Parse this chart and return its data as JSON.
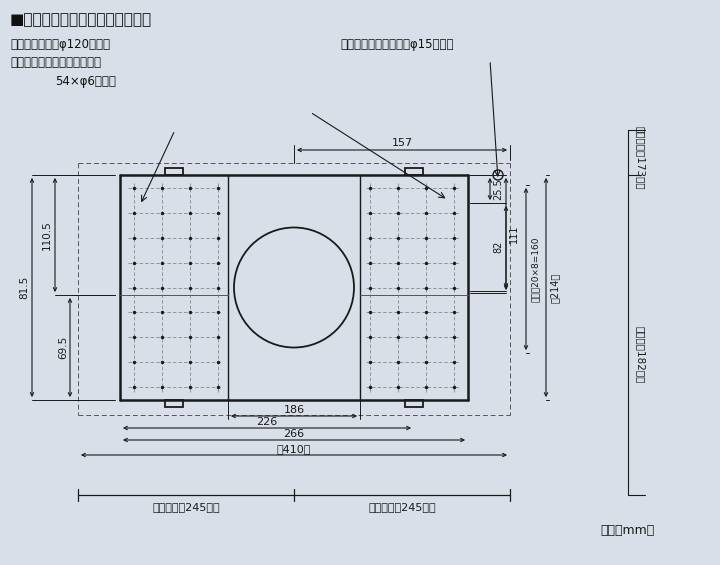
{
  "bg_color": "#d8dfe8",
  "title_text": "■取付位置図（室内側より見る）",
  "label_outdoor": "室外給排気口（φ120壁穴）",
  "label_lr": "（左：排気口、右：給気口）",
  "label_holes": "54×φ6取付穴",
  "label_power": "電源コード引出し口（φ15壁穴）",
  "label_left_wall": "左側壁より245以上",
  "label_right_wall": "右側壁より245以上",
  "label_unit": "（単位mm）",
  "label_ceil_top": "天井面より173以上",
  "label_ceil_bot": "下側より182以上",
  "dim_157": "157",
  "dim_1105": "110.5",
  "dim_695": "69.5",
  "dim_815": "81.5",
  "dim_255": "25.5",
  "dim_111": "111",
  "dim_82": "82",
  "dim_pitch": "ピッチ20×8=160",
  "dim_214": "（214）",
  "dim_186": "186",
  "dim_226": "226",
  "dim_266": "266",
  "dim_410": "（410）",
  "line_color": "#1a1a1a",
  "dim_color": "#1a1a1a",
  "dot_color": "#1a1a1a",
  "grid_color": "#555555"
}
